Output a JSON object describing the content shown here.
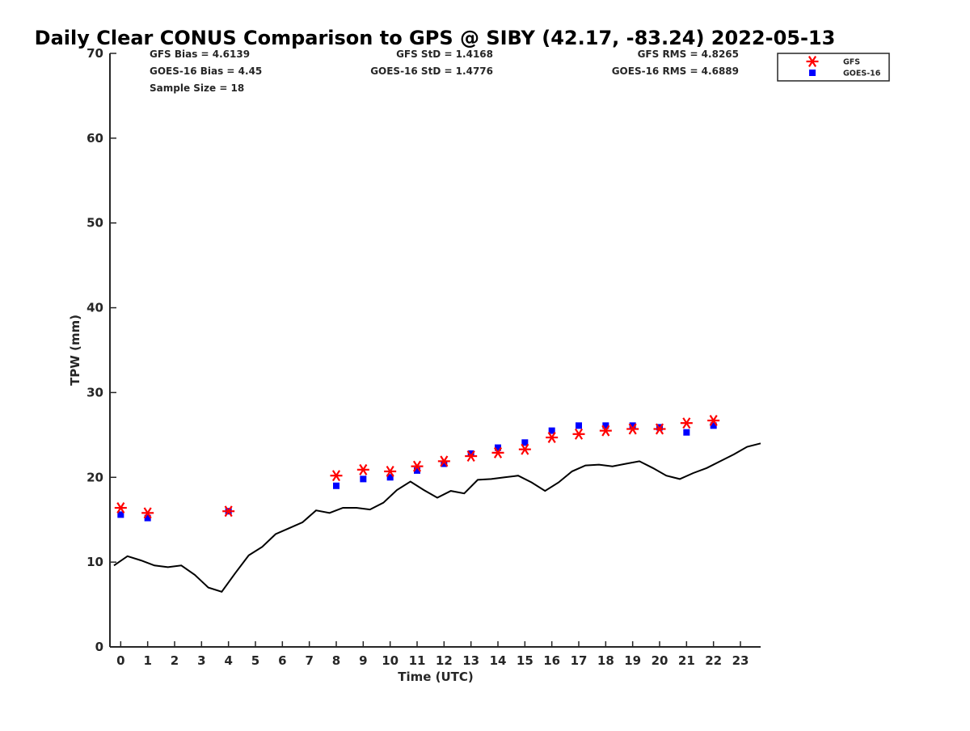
{
  "chart_data": {
    "type": "line",
    "title": "Daily Clear CONUS Comparison to GPS @ SIBY (42.17, -83.24) 2022-05-13",
    "xlabel": "Time (UTC)",
    "ylabel": "TPW (mm)",
    "xlim": [
      -0.4,
      23.75
    ],
    "ylim": [
      0,
      70
    ],
    "xticks": [
      "0",
      "1",
      "2",
      "3",
      "4",
      "5",
      "6",
      "7",
      "8",
      "9",
      "10",
      "11",
      "12",
      "13",
      "14",
      "15",
      "16",
      "17",
      "18",
      "19",
      "20",
      "21",
      "22",
      "23"
    ],
    "yticks": [
      "0",
      "10",
      "20",
      "30",
      "40",
      "50",
      "60",
      "70"
    ],
    "grid": false,
    "legend_position": "top-right",
    "stats": {
      "gfs_bias": "GFS Bias = 4.6139",
      "goes_bias": "GOES-16 Bias = 4.45",
      "sample_size": "Sample Size = 18",
      "gfs_std": "GFS StD = 1.4168",
      "goes_std": "GOES-16 StD = 1.4776",
      "gfs_rms": "GFS RMS = 4.8265",
      "goes_rms": "GOES-16 RMS = 4.6889"
    },
    "series": [
      {
        "name": "GFS",
        "marker": "asterisk",
        "color": "#ff0000",
        "points": [
          [
            0,
            16.4
          ],
          [
            1,
            15.8
          ],
          [
            4,
            16.0
          ],
          [
            8,
            20.2
          ],
          [
            9,
            20.9
          ],
          [
            10,
            20.7
          ],
          [
            11,
            21.3
          ],
          [
            12,
            21.9
          ],
          [
            13,
            22.5
          ],
          [
            14,
            22.9
          ],
          [
            15,
            23.3
          ],
          [
            16,
            24.7
          ],
          [
            17,
            25.1
          ],
          [
            18,
            25.5
          ],
          [
            19,
            25.7
          ],
          [
            20,
            25.7
          ],
          [
            21,
            26.4
          ],
          [
            22,
            26.7
          ]
        ]
      },
      {
        "name": "GOES-16",
        "marker": "square",
        "color": "#0000ff",
        "points": [
          [
            0,
            15.6
          ],
          [
            1,
            15.2
          ],
          [
            4,
            16.0
          ],
          [
            8,
            19.0
          ],
          [
            9,
            19.8
          ],
          [
            10,
            20.0
          ],
          [
            11,
            20.8
          ],
          [
            12,
            21.6
          ],
          [
            13,
            22.8
          ],
          [
            14,
            23.5
          ],
          [
            15,
            24.1
          ],
          [
            16,
            25.5
          ],
          [
            17,
            26.1
          ],
          [
            18,
            26.1
          ],
          [
            19,
            26.1
          ],
          [
            20,
            25.9
          ],
          [
            21,
            25.3
          ],
          [
            22,
            26.1
          ]
        ]
      },
      {
        "name": "",
        "marker": "none",
        "color": "#000000",
        "points": [
          [
            -0.25,
            9.6
          ],
          [
            0.25,
            10.7
          ],
          [
            0.75,
            10.2
          ],
          [
            1.25,
            9.6
          ],
          [
            1.75,
            9.4
          ],
          [
            2.25,
            9.6
          ],
          [
            2.75,
            8.5
          ],
          [
            3.25,
            7.0
          ],
          [
            3.75,
            6.5
          ],
          [
            4.25,
            8.7
          ],
          [
            4.75,
            10.8
          ],
          [
            5.25,
            11.8
          ],
          [
            5.75,
            13.3
          ],
          [
            6.25,
            14.0
          ],
          [
            6.75,
            14.7
          ],
          [
            7.25,
            16.1
          ],
          [
            7.75,
            15.8
          ],
          [
            8.25,
            16.4
          ],
          [
            8.75,
            16.4
          ],
          [
            9.25,
            16.2
          ],
          [
            9.75,
            17.0
          ],
          [
            10.25,
            18.5
          ],
          [
            10.75,
            19.5
          ],
          [
            11.25,
            18.5
          ],
          [
            11.75,
            17.6
          ],
          [
            12.25,
            18.4
          ],
          [
            12.75,
            18.1
          ],
          [
            13.25,
            19.7
          ],
          [
            13.75,
            19.8
          ],
          [
            14.25,
            20.0
          ],
          [
            14.75,
            20.2
          ],
          [
            15.25,
            19.4
          ],
          [
            15.75,
            18.4
          ],
          [
            16.25,
            19.4
          ],
          [
            16.75,
            20.7
          ],
          [
            17.25,
            21.4
          ],
          [
            17.75,
            21.5
          ],
          [
            18.25,
            21.3
          ],
          [
            18.75,
            21.6
          ],
          [
            19.25,
            21.9
          ],
          [
            19.75,
            21.1
          ],
          [
            20.25,
            20.2
          ],
          [
            20.75,
            19.8
          ],
          [
            21.25,
            20.5
          ],
          [
            21.75,
            21.1
          ],
          [
            22.25,
            21.9
          ],
          [
            22.75,
            22.7
          ],
          [
            23.25,
            23.6
          ],
          [
            23.75,
            24.0
          ]
        ]
      }
    ]
  }
}
